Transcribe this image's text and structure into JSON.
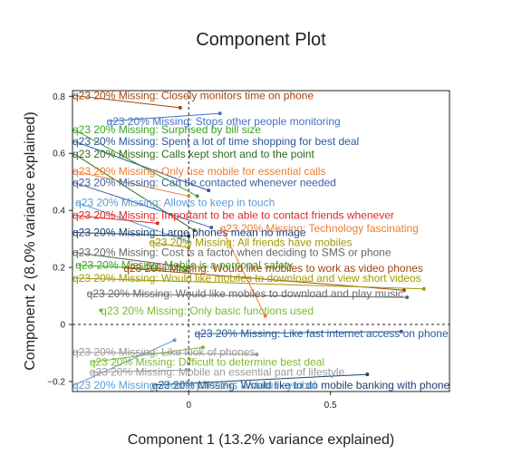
{
  "chart_data": {
    "type": "scatter",
    "title": "Component Plot",
    "xlabel": "Component 1 (13.2% variance explained)",
    "ylabel": "Component 2 (8.0% variance explained)",
    "xlim": [
      -0.41,
      0.92
    ],
    "ylim": [
      -0.235,
      0.82
    ],
    "xticks": [
      {
        "value": 0,
        "label": "0"
      },
      {
        "value": 0.5,
        "label": "0.5"
      }
    ],
    "yticks": [
      {
        "value": -0.2,
        "label": "−0.2"
      },
      {
        "value": 0,
        "label": "0"
      },
      {
        "value": 0.2,
        "label": "0.2"
      },
      {
        "value": 0.4,
        "label": "0.4"
      },
      {
        "value": 0.6,
        "label": "0.6"
      },
      {
        "value": 0.8,
        "label": "0.8"
      }
    ],
    "reference_lines": {
      "x": 0,
      "y": 0
    },
    "grid": false,
    "legend": "none",
    "points": [
      {
        "label": "q23 20% Missing: Closely monitors time on phone",
        "x": -0.03,
        "y": 0.76,
        "lx": -0.41,
        "ly": 0.79,
        "color": "#a0460e"
      },
      {
        "label": "q23 20% Missing: Stops other people monitoring",
        "x": 0.11,
        "y": 0.74,
        "lx": -0.29,
        "ly": 0.7,
        "color": "#4472c4"
      },
      {
        "label": "q23 20% Missing: Surprised by bill size",
        "x": 0.03,
        "y": 0.45,
        "lx": -0.41,
        "ly": 0.67,
        "color": "#3aa321"
      },
      {
        "label": "q23 20% Missing: Spent a lot of time shopping for best deal",
        "x": 0.07,
        "y": 0.47,
        "lx": -0.41,
        "ly": 0.63,
        "color": "#2a5a9c"
      },
      {
        "label": "q23 20% Missing: Calls kept short and to the point",
        "x": 0.02,
        "y": 0.33,
        "lx": -0.41,
        "ly": 0.585,
        "color": "#2e6a1a"
      },
      {
        "label": "q23 20% Missing: Only use mobile for essential calls",
        "x": 0.0,
        "y": 0.45,
        "lx": -0.41,
        "ly": 0.525,
        "color": "#ed7d31"
      },
      {
        "label": "q23 20% Missing: Can be contacted whenever needed",
        "x": 0.08,
        "y": 0.34,
        "lx": -0.41,
        "ly": 0.485,
        "color": "#3d5fa0"
      },
      {
        "label": "q23 20% Missing: Allows to keep in touch",
        "x": 0.0,
        "y": 0.29,
        "lx": -0.4,
        "ly": 0.415,
        "color": "#5b9bd5"
      },
      {
        "label": "q23 20% Missing: Important to be able to contact friends whenever",
        "x": -0.11,
        "y": 0.355,
        "lx": -0.41,
        "ly": 0.37,
        "color": "#e02424"
      },
      {
        "label": "q23 20% Missing: Large phones mean no image",
        "x": 0.0,
        "y": 0.31,
        "lx": -0.41,
        "ly": 0.31,
        "color": "#1c3f6e"
      },
      {
        "label": "q23 20% Missing: All friends have mobiles",
        "x": 0.0,
        "y": 0.27,
        "lx": -0.14,
        "ly": 0.275,
        "color": "#a09a00"
      },
      {
        "label": "q23 20% Missing: Technology fascinating",
        "x": 0.27,
        "y": 0.03,
        "lx": 0.11,
        "ly": 0.325,
        "color": "#ed7d31"
      },
      {
        "label": "q23 20% Missing: Cost is a factor when deciding to SMS or phone",
        "x": 0.0,
        "y": 0.2,
        "lx": -0.41,
        "ly": 0.24,
        "color": "#666666"
      },
      {
        "label": "q23 20% Missing: Mobile is a personal safety",
        "x": -0.01,
        "y": 0.19,
        "lx": -0.4,
        "ly": 0.195,
        "color": "#3aa321"
      },
      {
        "label": "q23 20% Missing: Would like mobiles to work as video phones",
        "x": 0.76,
        "y": 0.12,
        "lx": -0.23,
        "ly": 0.185,
        "color": "#a0460e"
      },
      {
        "label": "q23 20% Missing: Would like mobiles to download and view short videos",
        "x": 0.83,
        "y": 0.125,
        "lx": -0.41,
        "ly": 0.15,
        "color": "#a09a00"
      },
      {
        "label": "q23 20% Missing: Would like mobiles to download and play music",
        "x": 0.77,
        "y": 0.095,
        "lx": -0.36,
        "ly": 0.095,
        "color": "#666666"
      },
      {
        "label": "q23 20% Missing: Only basic functions used",
        "x": -0.31,
        "y": 0.05,
        "lx": -0.31,
        "ly": 0.035,
        "color": "#7cb82f"
      },
      {
        "label": "q23 20% Missing: Like fast internet access on phone",
        "x": 0.75,
        "y": -0.025,
        "lx": 0.02,
        "ly": -0.045,
        "color": "#2a5a9c"
      },
      {
        "label": "q23 20% Missing: Like look of phones",
        "x": 0.24,
        "y": -0.105,
        "lx": -0.41,
        "ly": -0.11,
        "color": "#999999"
      },
      {
        "label": "q23 20% Missing: Difficult to determine best deal",
        "x": 0.05,
        "y": -0.08,
        "lx": -0.35,
        "ly": -0.145,
        "color": "#7cb82f"
      },
      {
        "label": "q23 20% Missing: Mobile an essential part of lifestyle",
        "x": 0.0,
        "y": -0.16,
        "lx": -0.35,
        "ly": -0.18,
        "color": "#999999"
      },
      {
        "label": "q23 20% Missing: Would like to do mobile banking with phone",
        "x": 0.63,
        "y": -0.175,
        "lx": -0.13,
        "ly": -0.225,
        "color": "#1c3f6e"
      },
      {
        "label": "q23 20% Missing: Mobile phone is a status symbol",
        "x": -0.05,
        "y": -0.055,
        "lx": -0.41,
        "ly": -0.225,
        "color": "#5b9bd5"
      }
    ]
  }
}
